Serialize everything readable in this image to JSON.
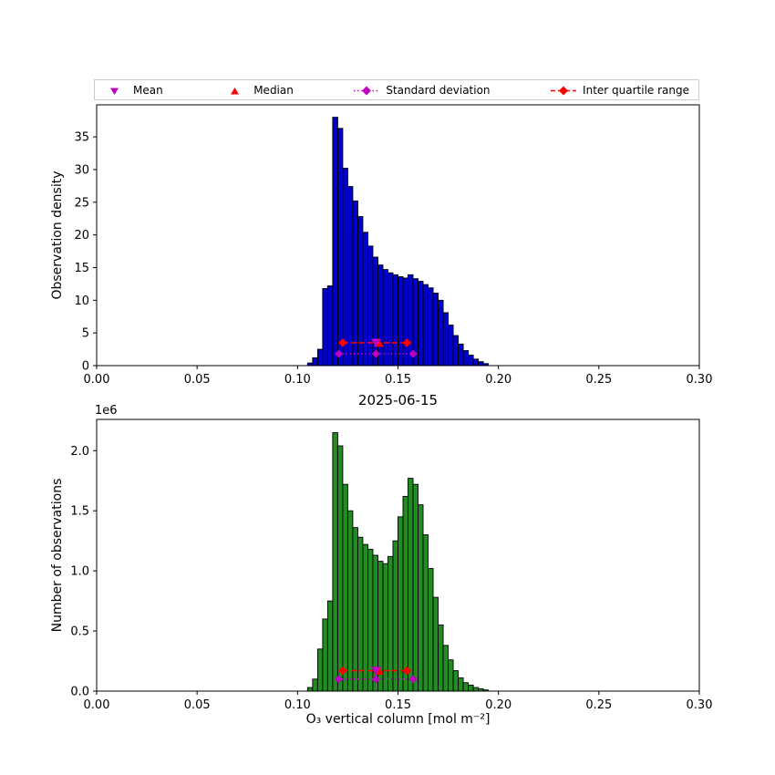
{
  "title": "2025-06-15",
  "xlabel": "O₃ vertical column [mol m⁻²]",
  "colors": {
    "red": "#FF0000",
    "magenta": "#BF00BF",
    "blue_bar": "#0000CC",
    "green_bar": "#228B22",
    "bar_edge": "#000000"
  },
  "legend": {
    "items": [
      {
        "label": "Mean",
        "marker": "triangle-down",
        "color": "#BF00BF",
        "line": "none"
      },
      {
        "label": "Median",
        "marker": "triangle-up",
        "color": "#FF0000",
        "line": "none"
      },
      {
        "label": "Standard deviation",
        "marker": "diamond",
        "color": "#BF00BF",
        "line": "dotted"
      },
      {
        "label": "Inter quartile range",
        "marker": "diamond",
        "color": "#FF0000",
        "line": "dashed"
      }
    ]
  },
  "chart_data": [
    {
      "type": "bar",
      "panel": "top",
      "ylabel": "Observation density",
      "bar_color": "#0000CC",
      "bar_edge": "#000000",
      "bin_start": 0.105,
      "bin_width": 0.0025,
      "values": [
        0.4,
        1.2,
        2.5,
        11.8,
        12.2,
        38.0,
        36.3,
        30.2,
        27.4,
        25.2,
        22.8,
        20.4,
        18.3,
        16.6,
        15.4,
        14.7,
        14.2,
        13.9,
        13.6,
        13.4,
        13.9,
        13.3,
        12.9,
        12.4,
        11.9,
        11.1,
        10.0,
        8.1,
        6.2,
        4.6,
        3.3,
        2.3,
        1.6,
        1.0,
        0.6,
        0.3
      ],
      "xlim": [
        0.0,
        0.3
      ],
      "ylim": [
        0.0,
        39.9
      ],
      "xticks": [
        0.0,
        0.05,
        0.1,
        0.15,
        0.2,
        0.25,
        0.3
      ],
      "xtick_labels": [
        "0.00",
        "0.05",
        "0.10",
        "0.15",
        "0.20",
        "0.25",
        "0.30"
      ],
      "yticks": [
        0,
        5,
        10,
        15,
        20,
        25,
        30,
        35
      ],
      "ytick_labels": [
        "0",
        "5",
        "10",
        "15",
        "20",
        "25",
        "30",
        "35"
      ],
      "stats": {
        "mean": 0.139,
        "median": 0.1405,
        "std_low": 0.1205,
        "std_high": 0.1575,
        "q1": 0.1225,
        "q3": 0.1545,
        "iqr_line_y": 3.5,
        "std_line_y": 1.8
      }
    },
    {
      "type": "bar",
      "panel": "bottom",
      "ylabel": "Number of observations",
      "scale_label": "1e6",
      "bar_color": "#228B22",
      "bar_edge": "#000000",
      "bin_start": 0.105,
      "bin_width": 0.0025,
      "values": [
        0.03,
        0.1,
        0.35,
        0.6,
        0.75,
        2.15,
        2.04,
        1.72,
        1.5,
        1.36,
        1.28,
        1.22,
        1.18,
        1.13,
        1.08,
        1.06,
        1.12,
        1.25,
        1.45,
        1.62,
        1.77,
        1.72,
        1.55,
        1.3,
        1.02,
        0.78,
        0.55,
        0.38,
        0.26,
        0.17,
        0.11,
        0.07,
        0.05,
        0.03,
        0.02,
        0.01
      ],
      "values_unit": 1000000,
      "xlim": [
        0.0,
        0.3
      ],
      "ylim": [
        0.0,
        2.26
      ],
      "xticks": [
        0.0,
        0.05,
        0.1,
        0.15,
        0.2,
        0.25,
        0.3
      ],
      "xtick_labels": [
        "0.00",
        "0.05",
        "0.10",
        "0.15",
        "0.20",
        "0.25",
        "0.30"
      ],
      "yticks": [
        0.0,
        0.5,
        1.0,
        1.5,
        2.0
      ],
      "ytick_labels": [
        "0.0",
        "0.5",
        "1.0",
        "1.5",
        "2.0"
      ],
      "stats": {
        "mean": 0.139,
        "median": 0.1405,
        "std_low": 0.1205,
        "std_high": 0.1575,
        "q1": 0.1225,
        "q3": 0.1545,
        "iqr_line_y": 0.17,
        "std_line_y": 0.1
      }
    }
  ]
}
